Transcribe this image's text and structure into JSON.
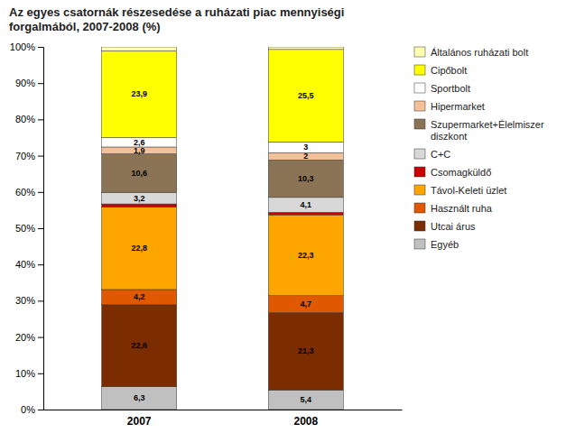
{
  "chart_data": {
    "type": "bar",
    "title": "Az egyes csatornák részesedése a ruházati piac mennyiségi\nforgalmából, 2007-2008 (%)",
    "categories": [
      "2007",
      "2008"
    ],
    "stacked": true,
    "data_labels": true,
    "legend": "right",
    "grid": false,
    "ylim": [
      0,
      100
    ],
    "yticks": [
      {
        "value": 0,
        "label": "0%"
      },
      {
        "value": 10,
        "label": "10%"
      },
      {
        "value": 20,
        "label": "20%"
      },
      {
        "value": 30,
        "label": "30%"
      },
      {
        "value": 40,
        "label": "40%"
      },
      {
        "value": 50,
        "label": "50%"
      },
      {
        "value": 60,
        "label": "60%"
      },
      {
        "value": 70,
        "label": "70%"
      },
      {
        "value": 80,
        "label": "80%"
      },
      {
        "value": 90,
        "label": "90%"
      },
      {
        "value": 100,
        "label": "100%"
      }
    ],
    "series": [
      {
        "name": "Egyéb",
        "color": "#c0c0c0",
        "values": [
          6.3,
          5.4
        ],
        "value_labels": [
          "6,3",
          "5,4"
        ]
      },
      {
        "name": "Utcai árus",
        "color": "#7b2d00",
        "values": [
          22.6,
          21.3
        ],
        "value_labels": [
          "22,6",
          "21,3"
        ]
      },
      {
        "name": "Használt ruha",
        "color": "#e05800",
        "values": [
          4.2,
          4.7
        ],
        "value_labels": [
          "4,2",
          "4,7"
        ]
      },
      {
        "name": "Távol-Keleti üzlet",
        "color": "#ffa500",
        "values": [
          22.8,
          22.3
        ],
        "value_labels": [
          "22,8",
          "22,3"
        ]
      },
      {
        "name": "Csomagküldő",
        "color": "#cc0000",
        "values": [
          0.8,
          0.7
        ],
        "value_labels": [
          null,
          null
        ]
      },
      {
        "name": "C+C",
        "color": "#d8d8d8",
        "values": [
          3.2,
          4.1
        ],
        "value_labels": [
          "3,2",
          "4,1"
        ]
      },
      {
        "name": "Szupermarket+Élelmiszer\ndiszkont",
        "color": "#8b7355",
        "values": [
          10.6,
          10.3
        ],
        "value_labels": [
          "10,6",
          "10,3"
        ]
      },
      {
        "name": "Hipermarket",
        "color": "#f4c09a",
        "values": [
          1.9,
          2.0
        ],
        "value_labels": [
          "1,9",
          "2"
        ]
      },
      {
        "name": "Sportbolt",
        "color": "#ffffff",
        "values": [
          2.6,
          3.0
        ],
        "value_labels": [
          "2,6",
          "3"
        ]
      },
      {
        "name": "Cipőbolt",
        "color": "#ffff00",
        "values": [
          23.9,
          25.5
        ],
        "value_labels": [
          "23,9",
          "25,5"
        ]
      },
      {
        "name": "Általános ruházati bolt",
        "color": "#ffffb0",
        "values": [
          1.1,
          0.7
        ],
        "value_labels": [
          null,
          null
        ]
      }
    ]
  }
}
